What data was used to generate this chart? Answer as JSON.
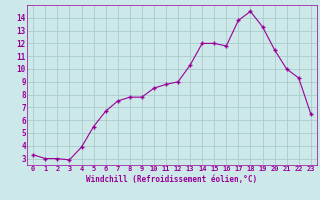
{
  "x": [
    0,
    1,
    2,
    3,
    4,
    5,
    6,
    7,
    8,
    9,
    10,
    11,
    12,
    13,
    14,
    15,
    16,
    17,
    18,
    19,
    20,
    21,
    22,
    23
  ],
  "y": [
    3.3,
    3.0,
    3.0,
    2.9,
    3.9,
    5.5,
    6.7,
    7.5,
    7.8,
    7.8,
    8.5,
    8.8,
    9.0,
    10.3,
    12.0,
    12.0,
    11.8,
    13.8,
    14.5,
    13.3,
    11.5,
    10.0,
    9.3,
    6.5
  ],
  "xlabel": "Windchill (Refroidissement éolien,°C)",
  "ylim": [
    2.5,
    15.0
  ],
  "xlim": [
    -0.5,
    23.5
  ],
  "yticks": [
    3,
    4,
    5,
    6,
    7,
    8,
    9,
    10,
    11,
    12,
    13,
    14
  ],
  "xticks": [
    0,
    1,
    2,
    3,
    4,
    5,
    6,
    7,
    8,
    9,
    10,
    11,
    12,
    13,
    14,
    15,
    16,
    17,
    18,
    19,
    20,
    21,
    22,
    23
  ],
  "line_color": "#990099",
  "marker": "+",
  "bg_color": "#cce8e8",
  "grid_color": "#aacccc",
  "tick_color": "#990099",
  "label_color": "#990099",
  "spine_color": "#990099"
}
